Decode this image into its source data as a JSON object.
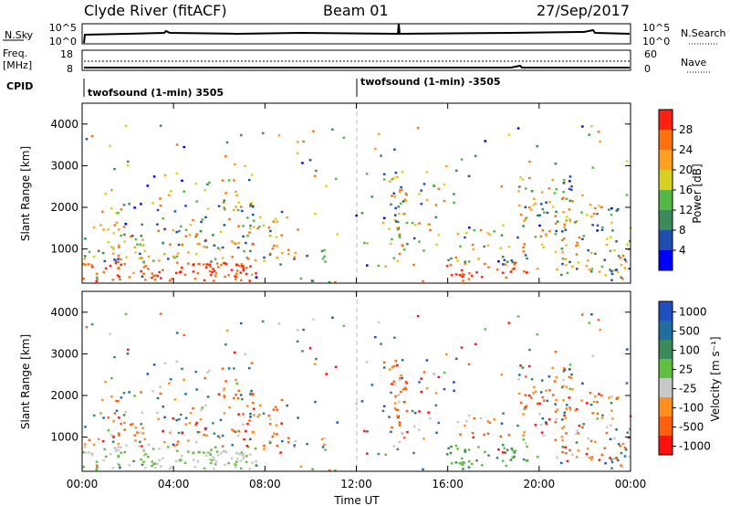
{
  "header": {
    "station": "Clyde River (fitACF)",
    "beam": "Beam 01",
    "date": "27/Sep/2017"
  },
  "noise_panel": {
    "left_label": "N.Sky",
    "left_ticks": [
      "10^5",
      "10^0"
    ],
    "right_ticks": [
      "10^5",
      "10^0"
    ],
    "right_label": "N.Search"
  },
  "freq_panel": {
    "left_label_1": "Freq.",
    "left_label_2": "[MHz]",
    "left_ticks": [
      "18",
      "8"
    ],
    "right_ticks": [
      "60",
      "0"
    ],
    "right_label": "Nave"
  },
  "cpid": {
    "label": "CPID",
    "segments": [
      {
        "text": "twofsound (1-min) 3505"
      },
      {
        "text": "twofsound (1-min) -3505"
      }
    ]
  },
  "chart_data": [
    {
      "type": "heatmap",
      "ylabel": "Slant Range [km]",
      "yticks": [
        "1000",
        "2000",
        "3000",
        "4000"
      ],
      "colorbar_label": "Power [dB]",
      "colorbar_ticks": [
        "4",
        "8",
        "12",
        "16",
        "20",
        "24",
        "28"
      ],
      "colorbar_colors": [
        "#0000ff",
        "#1e4fb0",
        "#3a8a5a",
        "#54b848",
        "#d8d020",
        "#ffa020",
        "#ff7010",
        "#ff2010"
      ],
      "ylim": [
        180,
        4500
      ],
      "xlim": [
        0,
        24
      ]
    },
    {
      "type": "heatmap",
      "ylabel": "Slant Range [km]",
      "yticks": [
        "1000",
        "2000",
        "3000",
        "4000"
      ],
      "colorbar_label": "Velocity [m s⁻¹]",
      "colorbar_ticks": [
        "1000",
        "500",
        "100",
        "25",
        "-25",
        "-100",
        "-500",
        "-1000"
      ],
      "colorbar_colors": [
        "#2050c0",
        "#1e6fa0",
        "#3a8a5a",
        "#60c040",
        "#c8c8c8",
        "#ff9020",
        "#ff6010",
        "#ff1010"
      ],
      "ylim": [
        180,
        4500
      ],
      "xlim": [
        0,
        24
      ]
    }
  ],
  "xaxis": {
    "ticks": [
      "00:00",
      "04:00",
      "08:00",
      "12:00",
      "16:00",
      "20:00",
      "00:00"
    ],
    "label": "Time UT"
  }
}
